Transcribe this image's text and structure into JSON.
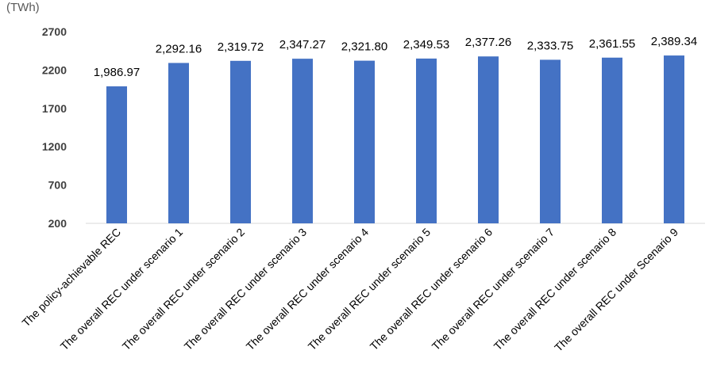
{
  "chart_data": {
    "type": "bar",
    "title": "",
    "xlabel": "",
    "ylabel": "",
    "unit_label": "(TWh)",
    "categories": [
      "The policy-achievable REC",
      "The overall REC under scenario 1",
      "The overall REC under scenario 2",
      "The overall REC under scenario 3",
      "The overall REC under scenario 4",
      "The overall REC under scenario 5",
      "The overall REC under scenario 6",
      "The overall REC under scenario 7",
      "The overall REC under scenario 8",
      "The overall REC under Scenario 9"
    ],
    "values": [
      1986.97,
      2292.16,
      2319.72,
      2347.27,
      2321.8,
      2349.53,
      2377.26,
      2333.75,
      2361.55,
      2389.34
    ],
    "data_labels": [
      "1,986.97",
      "2,292.16",
      "2,319.72",
      "2,347.27",
      "2,321.80",
      "2,349.53",
      "2,377.26",
      "2,333.75",
      "2,361.55",
      "2,389.34"
    ],
    "yticks": [
      200,
      700,
      1200,
      1700,
      2200,
      2700
    ],
    "ytick_labels": [
      "200",
      "700",
      "1200",
      "1700",
      "2200",
      "2700"
    ],
    "ylim": [
      200,
      2700
    ],
    "grid": false,
    "legend": "none",
    "bar_color": "#4472C4",
    "axis_color": "#d9d9d9"
  }
}
